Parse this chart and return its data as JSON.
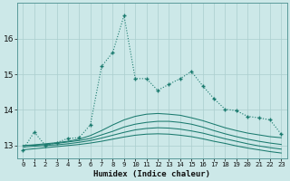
{
  "xlabel": "Humidex (Indice chaleur)",
  "x": [
    0,
    1,
    2,
    3,
    4,
    5,
    6,
    7,
    8,
    9,
    10,
    11,
    12,
    13,
    14,
    15,
    16,
    17,
    18,
    19,
    20,
    21,
    22,
    23
  ],
  "main_line": [
    12.88,
    13.38,
    13.0,
    13.08,
    13.2,
    13.22,
    13.58,
    15.22,
    15.62,
    16.65,
    14.88,
    14.88,
    14.55,
    14.72,
    14.88,
    15.08,
    14.68,
    14.32,
    14.02,
    13.98,
    13.82,
    13.78,
    13.72,
    13.32
  ],
  "smooth1": [
    13.0,
    13.02,
    13.05,
    13.08,
    13.12,
    13.18,
    13.28,
    13.42,
    13.58,
    13.72,
    13.82,
    13.88,
    13.9,
    13.88,
    13.85,
    13.78,
    13.7,
    13.6,
    13.5,
    13.42,
    13.35,
    13.3,
    13.25,
    13.22
  ],
  "smooth2": [
    13.0,
    13.01,
    13.03,
    13.06,
    13.1,
    13.14,
    13.2,
    13.3,
    13.4,
    13.52,
    13.6,
    13.65,
    13.68,
    13.68,
    13.65,
    13.6,
    13.52,
    13.42,
    13.33,
    13.25,
    13.18,
    13.12,
    13.07,
    13.03
  ],
  "smooth3": [
    12.96,
    12.98,
    13.0,
    13.02,
    13.05,
    13.09,
    13.14,
    13.21,
    13.29,
    13.37,
    13.44,
    13.48,
    13.5,
    13.49,
    13.46,
    13.41,
    13.35,
    13.27,
    13.19,
    13.12,
    13.05,
    12.99,
    12.94,
    12.9
  ],
  "smooth4": [
    12.88,
    12.91,
    12.94,
    12.97,
    13.0,
    13.03,
    13.07,
    13.12,
    13.18,
    13.24,
    13.29,
    13.32,
    13.33,
    13.32,
    13.29,
    13.25,
    13.19,
    13.12,
    13.06,
    12.99,
    12.93,
    12.88,
    12.83,
    12.79
  ],
  "line_color": "#1a7a6e",
  "bg_color": "#cce8e8",
  "grid_color": "#aacece",
  "ylim": [
    12.65,
    17.0
  ],
  "yticks": [
    13,
    14,
    15,
    16
  ]
}
